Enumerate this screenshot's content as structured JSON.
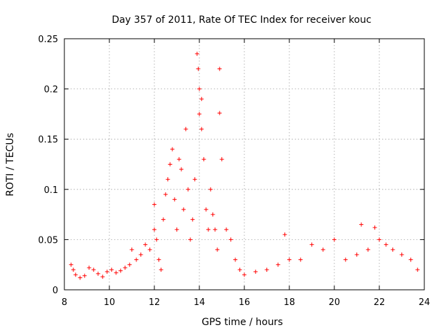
{
  "chart_data": {
    "type": "scatter",
    "title": "Day 357 of 2011, Rate Of TEC Index for receiver kouc",
    "xlabel": "GPS time / hours",
    "ylabel": "ROTI / TECUs",
    "xlim": [
      8,
      24
    ],
    "ylim": [
      0,
      0.25
    ],
    "xticks": [
      "8",
      "10",
      "12",
      "14",
      "16",
      "18",
      "20",
      "22",
      "24"
    ],
    "yticks": [
      "0",
      "0.05",
      "0.1",
      "0.15",
      "0.2",
      "0.25"
    ],
    "grid": true,
    "marker": "+",
    "color": "#ff0000",
    "series": [
      {
        "name": "ROTI",
        "points": [
          [
            8.3,
            0.025
          ],
          [
            8.4,
            0.02
          ],
          [
            8.5,
            0.015
          ],
          [
            8.7,
            0.012
          ],
          [
            8.9,
            0.014
          ],
          [
            9.1,
            0.022
          ],
          [
            9.3,
            0.02
          ],
          [
            9.5,
            0.016
          ],
          [
            9.7,
            0.013
          ],
          [
            9.9,
            0.018
          ],
          [
            10.1,
            0.02
          ],
          [
            10.3,
            0.017
          ],
          [
            10.5,
            0.019
          ],
          [
            10.7,
            0.022
          ],
          [
            10.9,
            0.025
          ],
          [
            11.0,
            0.04
          ],
          [
            11.2,
            0.03
          ],
          [
            11.4,
            0.035
          ],
          [
            11.6,
            0.045
          ],
          [
            11.8,
            0.04
          ],
          [
            12.0,
            0.06
          ],
          [
            12.0,
            0.085
          ],
          [
            12.1,
            0.05
          ],
          [
            12.2,
            0.03
          ],
          [
            12.3,
            0.02
          ],
          [
            12.4,
            0.07
          ],
          [
            12.5,
            0.095
          ],
          [
            12.6,
            0.11
          ],
          [
            12.7,
            0.125
          ],
          [
            12.8,
            0.14
          ],
          [
            12.9,
            0.09
          ],
          [
            13.0,
            0.06
          ],
          [
            13.1,
            0.13
          ],
          [
            13.2,
            0.12
          ],
          [
            13.3,
            0.08
          ],
          [
            13.4,
            0.16
          ],
          [
            13.5,
            0.1
          ],
          [
            13.6,
            0.05
          ],
          [
            13.7,
            0.07
          ],
          [
            13.8,
            0.11
          ],
          [
            13.9,
            0.235
          ],
          [
            13.95,
            0.22
          ],
          [
            14.0,
            0.2
          ],
          [
            14.0,
            0.175
          ],
          [
            14.1,
            0.19
          ],
          [
            14.1,
            0.16
          ],
          [
            14.2,
            0.13
          ],
          [
            14.3,
            0.08
          ],
          [
            14.4,
            0.06
          ],
          [
            14.5,
            0.1
          ],
          [
            14.6,
            0.075
          ],
          [
            14.7,
            0.06
          ],
          [
            14.8,
            0.04
          ],
          [
            14.9,
            0.22
          ],
          [
            14.9,
            0.176
          ],
          [
            15.0,
            0.13
          ],
          [
            15.2,
            0.06
          ],
          [
            15.4,
            0.05
          ],
          [
            15.6,
            0.03
          ],
          [
            15.8,
            0.02
          ],
          [
            16.0,
            0.015
          ],
          [
            16.5,
            0.018
          ],
          [
            17.0,
            0.02
          ],
          [
            17.5,
            0.025
          ],
          [
            17.8,
            0.055
          ],
          [
            18.0,
            0.03
          ],
          [
            18.5,
            0.03
          ],
          [
            19.0,
            0.045
          ],
          [
            19.5,
            0.04
          ],
          [
            20.0,
            0.05
          ],
          [
            20.5,
            0.03
          ],
          [
            21.0,
            0.035
          ],
          [
            21.2,
            0.065
          ],
          [
            21.5,
            0.04
          ],
          [
            21.8,
            0.062
          ],
          [
            22.0,
            0.05
          ],
          [
            22.3,
            0.045
          ],
          [
            22.6,
            0.04
          ],
          [
            23.0,
            0.035
          ],
          [
            23.4,
            0.03
          ],
          [
            23.7,
            0.02
          ]
        ]
      }
    ]
  }
}
